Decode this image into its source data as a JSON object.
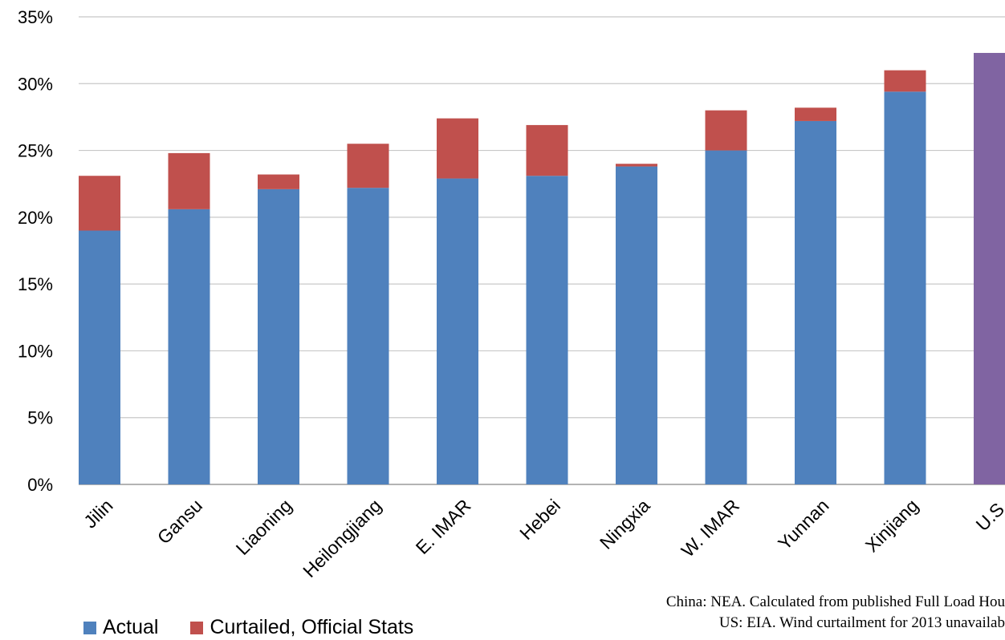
{
  "chart_data": {
    "type": "bar",
    "stacked": true,
    "categories": [
      "Jilin",
      "Gansu",
      "Liaoning",
      "Heilongjiang",
      "E. IMAR",
      "Hebei",
      "Ningxia",
      "W. IMAR",
      "Yunnan",
      "Xinjiang",
      "U.S."
    ],
    "series": [
      {
        "name": "Actual",
        "color": "#4F81BD",
        "values": [
          19.0,
          20.6,
          22.1,
          22.2,
          22.9,
          23.1,
          23.8,
          25.0,
          27.2,
          29.4,
          32.3
        ]
      },
      {
        "name": "Curtailed, Official Stats",
        "color": "#C0504D",
        "values": [
          4.1,
          4.2,
          1.1,
          3.3,
          4.5,
          3.8,
          0.2,
          3.0,
          1.0,
          1.6,
          null
        ]
      }
    ],
    "highlight": {
      "category": "U.S.",
      "color": "#8064A2"
    },
    "ylim": [
      0,
      35
    ],
    "yticks": [
      "0%",
      "5%",
      "10%",
      "15%",
      "20%",
      "25%",
      "30%",
      "35%"
    ],
    "ytick_values": [
      0,
      5,
      10,
      15,
      20,
      25,
      30,
      35
    ],
    "grid": true,
    "legend_position": "bottom-left",
    "notes": [
      "China: NEA. Calculated from published Full Load Hou",
      "US: EIA. Wind curtailment  for 2013  unavailab"
    ],
    "title": "",
    "xlabel": "",
    "ylabel": ""
  }
}
